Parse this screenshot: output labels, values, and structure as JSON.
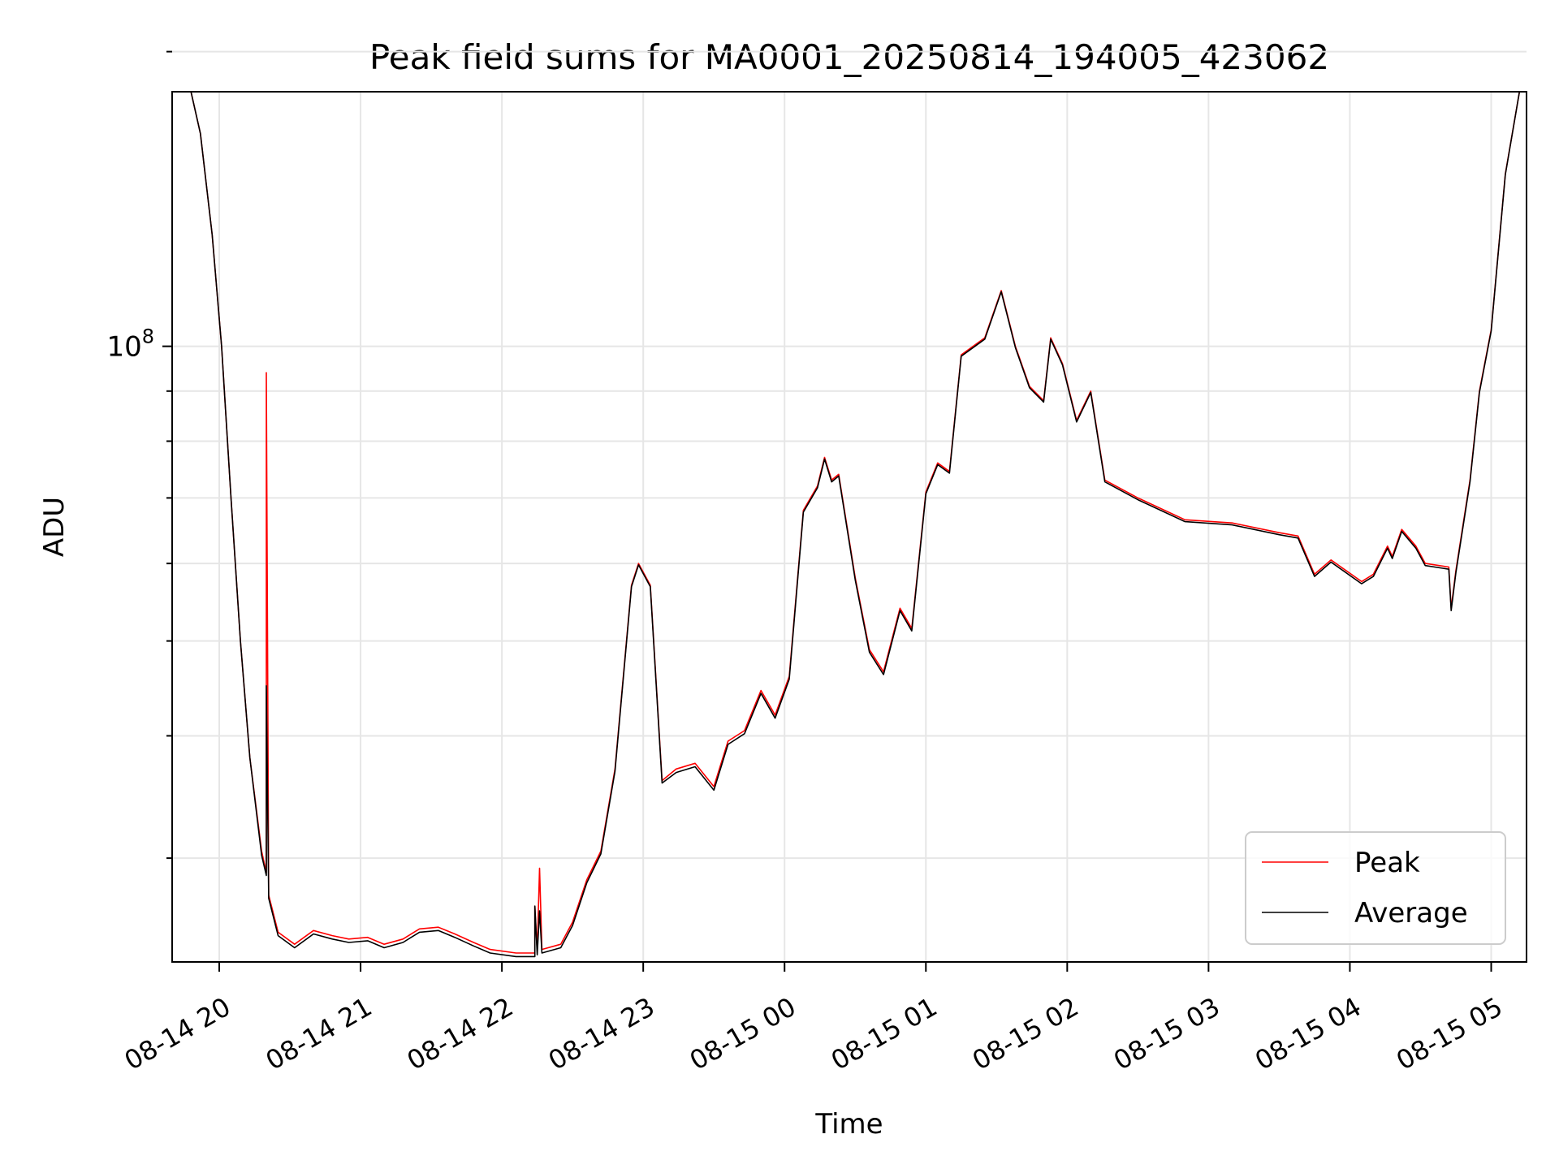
{
  "chart_data": {
    "type": "line",
    "title": "Peak field sums for MA0001_20250814_194005_423062",
    "xlabel": "Time",
    "ylabel": "ADU",
    "yscale": "log",
    "ylim": [
      23500000,
      182000000
    ],
    "xlim": [
      "2025-08-14 19:40",
      "2025-08-15 05:15"
    ],
    "y_major_tick_labels": [
      {
        "value": 100000000,
        "base": "10",
        "exp": "8"
      }
    ],
    "y_minor_ticks": [
      30000000,
      40000000,
      50000000,
      60000000,
      70000000,
      80000000,
      90000000,
      200000000
    ],
    "x_tick_labels": [
      "08-14 20",
      "08-14 21",
      "08-14 22",
      "08-14 23",
      "08-15 00",
      "08-15 01",
      "08-15 02",
      "08-15 03",
      "08-15 04",
      "08-15 05"
    ],
    "x_tick_times": [
      "2025-08-14 20:00",
      "2025-08-14 21:00",
      "2025-08-14 22:00",
      "2025-08-14 23:00",
      "2025-08-15 00:00",
      "2025-08-15 01:00",
      "2025-08-15 02:00",
      "2025-08-15 03:00",
      "2025-08-15 04:00",
      "2025-08-15 05:00"
    ],
    "grid": true,
    "legend_position": "lower-right",
    "series": [
      {
        "name": "Peak",
        "color": "#ff0000",
        "points": [
          [
            "2025-08-14 19:40",
            182000000
          ],
          [
            "2025-08-14 19:48",
            182000000
          ],
          [
            "2025-08-14 19:52",
            165000000
          ],
          [
            "2025-08-14 19:57",
            130000000
          ],
          [
            "2025-08-14 20:01",
            100000000
          ],
          [
            "2025-08-14 20:05",
            70000000
          ],
          [
            "2025-08-14 20:09",
            50000000
          ],
          [
            "2025-08-14 20:13",
            38000000
          ],
          [
            "2025-08-14 20:18",
            30500000
          ],
          [
            "2025-08-14 20:20",
            29000000
          ],
          [
            "2025-08-14 20:20",
            94000000
          ],
          [
            "2025-08-14 20:21",
            27500000
          ],
          [
            "2025-08-14 20:25",
            25200000
          ],
          [
            "2025-08-14 20:32",
            24500000
          ],
          [
            "2025-08-14 20:40",
            25300000
          ],
          [
            "2025-08-14 20:48",
            25000000
          ],
          [
            "2025-08-14 20:55",
            24800000
          ],
          [
            "2025-08-14 21:03",
            24900000
          ],
          [
            "2025-08-14 21:10",
            24500000
          ],
          [
            "2025-08-14 21:18",
            24800000
          ],
          [
            "2025-08-14 21:25",
            25400000
          ],
          [
            "2025-08-14 21:33",
            25500000
          ],
          [
            "2025-08-14 21:40",
            25100000
          ],
          [
            "2025-08-14 21:48",
            24600000
          ],
          [
            "2025-08-14 21:55",
            24200000
          ],
          [
            "2025-08-14 22:06",
            24000000
          ],
          [
            "2025-08-14 22:14",
            24000000
          ],
          [
            "2025-08-14 22:14",
            26800000
          ],
          [
            "2025-08-14 22:15",
            24100000
          ],
          [
            "2025-08-14 22:16",
            29300000
          ],
          [
            "2025-08-14 22:17",
            24200000
          ],
          [
            "2025-08-14 22:25",
            24500000
          ],
          [
            "2025-08-14 22:30",
            25800000
          ],
          [
            "2025-08-14 22:36",
            28500000
          ],
          [
            "2025-08-14 22:42",
            30500000
          ],
          [
            "2025-08-14 22:48",
            37000000
          ],
          [
            "2025-08-14 22:55",
            57000000
          ],
          [
            "2025-08-14 22:58",
            60000000
          ],
          [
            "2025-08-14 23:03",
            57000000
          ],
          [
            "2025-08-14 23:08",
            36000000
          ],
          [
            "2025-08-14 23:14",
            37000000
          ],
          [
            "2025-08-14 23:22",
            37500000
          ],
          [
            "2025-08-14 23:30",
            35500000
          ],
          [
            "2025-08-14 23:36",
            39500000
          ],
          [
            "2025-08-14 23:43",
            40500000
          ],
          [
            "2025-08-14 23:50",
            44500000
          ],
          [
            "2025-08-14 23:56",
            42000000
          ],
          [
            "2025-08-15 00:02",
            46000000
          ],
          [
            "2025-08-15 00:08",
            68000000
          ],
          [
            "2025-08-15 00:14",
            72000000
          ],
          [
            "2025-08-15 00:17",
            77000000
          ],
          [
            "2025-08-15 00:20",
            73000000
          ],
          [
            "2025-08-15 00:23",
            74000000
          ],
          [
            "2025-08-15 00:30",
            58000000
          ],
          [
            "2025-08-15 00:36",
            49000000
          ],
          [
            "2025-08-15 00:42",
            46500000
          ],
          [
            "2025-08-15 00:49",
            54000000
          ],
          [
            "2025-08-15 00:54",
            51500000
          ],
          [
            "2025-08-15 01:00",
            71000000
          ],
          [
            "2025-08-15 01:05",
            76000000
          ],
          [
            "2025-08-15 01:10",
            74500000
          ],
          [
            "2025-08-15 01:15",
            98000000
          ],
          [
            "2025-08-15 01:25",
            102000000
          ],
          [
            "2025-08-15 01:32",
            114000000
          ],
          [
            "2025-08-15 01:38",
            100000000
          ],
          [
            "2025-08-15 01:44",
            91000000
          ],
          [
            "2025-08-15 01:50",
            88000000
          ],
          [
            "2025-08-15 01:53",
            102000000
          ],
          [
            "2025-08-15 01:58",
            96000000
          ],
          [
            "2025-08-15 02:04",
            84000000
          ],
          [
            "2025-08-15 02:10",
            90000000
          ],
          [
            "2025-08-15 02:16",
            73000000
          ],
          [
            "2025-08-15 02:30",
            70000000
          ],
          [
            "2025-08-15 02:50",
            66500000
          ],
          [
            "2025-08-15 03:10",
            66000000
          ],
          [
            "2025-08-15 03:30",
            64500000
          ],
          [
            "2025-08-15 03:38",
            64000000
          ],
          [
            "2025-08-15 03:45",
            58500000
          ],
          [
            "2025-08-15 03:52",
            60500000
          ],
          [
            "2025-08-15 04:05",
            57500000
          ],
          [
            "2025-08-15 04:10",
            58500000
          ],
          [
            "2025-08-15 04:16",
            62500000
          ],
          [
            "2025-08-15 04:18",
            61000000
          ],
          [
            "2025-08-15 04:22",
            65000000
          ],
          [
            "2025-08-15 04:28",
            62500000
          ],
          [
            "2025-08-15 04:32",
            60000000
          ],
          [
            "2025-08-15 04:42",
            59500000
          ],
          [
            "2025-08-15 04:43",
            54000000
          ],
          [
            "2025-08-15 04:45",
            59000000
          ],
          [
            "2025-08-15 04:51",
            73000000
          ],
          [
            "2025-08-15 04:55",
            90000000
          ],
          [
            "2025-08-15 05:00",
            104000000
          ],
          [
            "2025-08-15 05:06",
            150000000
          ],
          [
            "2025-08-15 05:12",
            182000000
          ],
          [
            "2025-08-15 05:15",
            182000000
          ]
        ]
      },
      {
        "name": "Average",
        "color": "#000000",
        "points": [
          [
            "2025-08-14 19:40",
            182000000
          ],
          [
            "2025-08-14 19:48",
            182000000
          ],
          [
            "2025-08-14 19:52",
            165000000
          ],
          [
            "2025-08-14 19:57",
            130000000
          ],
          [
            "2025-08-14 20:01",
            100000000
          ],
          [
            "2025-08-14 20:05",
            70000000
          ],
          [
            "2025-08-14 20:09",
            50000000
          ],
          [
            "2025-08-14 20:13",
            38000000
          ],
          [
            "2025-08-14 20:18",
            30200000
          ],
          [
            "2025-08-14 20:20",
            28800000
          ],
          [
            "2025-08-14 20:20",
            45000000
          ],
          [
            "2025-08-14 20:21",
            27300000
          ],
          [
            "2025-08-14 20:25",
            25000000
          ],
          [
            "2025-08-14 20:32",
            24300000
          ],
          [
            "2025-08-14 20:40",
            25100000
          ],
          [
            "2025-08-14 20:48",
            24800000
          ],
          [
            "2025-08-14 20:55",
            24600000
          ],
          [
            "2025-08-14 21:03",
            24700000
          ],
          [
            "2025-08-14 21:10",
            24300000
          ],
          [
            "2025-08-14 21:18",
            24600000
          ],
          [
            "2025-08-14 21:25",
            25200000
          ],
          [
            "2025-08-14 21:33",
            25300000
          ],
          [
            "2025-08-14 21:40",
            24900000
          ],
          [
            "2025-08-14 21:48",
            24400000
          ],
          [
            "2025-08-14 21:55",
            24000000
          ],
          [
            "2025-08-14 22:06",
            23800000
          ],
          [
            "2025-08-14 22:14",
            23800000
          ],
          [
            "2025-08-14 22:14",
            26800000
          ],
          [
            "2025-08-14 22:15",
            23900000
          ],
          [
            "2025-08-14 22:16",
            26500000
          ],
          [
            "2025-08-14 22:17",
            24000000
          ],
          [
            "2025-08-14 22:25",
            24300000
          ],
          [
            "2025-08-14 22:30",
            25600000
          ],
          [
            "2025-08-14 22:36",
            28300000
          ],
          [
            "2025-08-14 22:42",
            30300000
          ],
          [
            "2025-08-14 22:48",
            36800000
          ],
          [
            "2025-08-14 22:55",
            56800000
          ],
          [
            "2025-08-14 22:58",
            59800000
          ],
          [
            "2025-08-14 23:03",
            56800000
          ],
          [
            "2025-08-14 23:08",
            35800000
          ],
          [
            "2025-08-14 23:14",
            36700000
          ],
          [
            "2025-08-14 23:22",
            37200000
          ],
          [
            "2025-08-14 23:30",
            35200000
          ],
          [
            "2025-08-14 23:36",
            39200000
          ],
          [
            "2025-08-14 23:43",
            40200000
          ],
          [
            "2025-08-14 23:50",
            44200000
          ],
          [
            "2025-08-14 23:56",
            41700000
          ],
          [
            "2025-08-15 00:02",
            45700000
          ],
          [
            "2025-08-15 00:08",
            67700000
          ],
          [
            "2025-08-15 00:14",
            71700000
          ],
          [
            "2025-08-15 00:17",
            76700000
          ],
          [
            "2025-08-15 00:20",
            72700000
          ],
          [
            "2025-08-15 00:23",
            73700000
          ],
          [
            "2025-08-15 00:30",
            57700000
          ],
          [
            "2025-08-15 00:36",
            48700000
          ],
          [
            "2025-08-15 00:42",
            46200000
          ],
          [
            "2025-08-15 00:49",
            53700000
          ],
          [
            "2025-08-15 00:54",
            51200000
          ],
          [
            "2025-08-15 01:00",
            70700000
          ],
          [
            "2025-08-15 01:05",
            75700000
          ],
          [
            "2025-08-15 01:10",
            74200000
          ],
          [
            "2025-08-15 01:15",
            97700000
          ],
          [
            "2025-08-15 01:25",
            101700000
          ],
          [
            "2025-08-15 01:32",
            113700000
          ],
          [
            "2025-08-15 01:38",
            99700000
          ],
          [
            "2025-08-15 01:44",
            90700000
          ],
          [
            "2025-08-15 01:50",
            87700000
          ],
          [
            "2025-08-15 01:53",
            101700000
          ],
          [
            "2025-08-15 01:58",
            95700000
          ],
          [
            "2025-08-15 02:04",
            83700000
          ],
          [
            "2025-08-15 02:10",
            89700000
          ],
          [
            "2025-08-15 02:16",
            72700000
          ],
          [
            "2025-08-15 02:30",
            69700000
          ],
          [
            "2025-08-15 02:50",
            66200000
          ],
          [
            "2025-08-15 03:10",
            65700000
          ],
          [
            "2025-08-15 03:30",
            64200000
          ],
          [
            "2025-08-15 03:38",
            63700000
          ],
          [
            "2025-08-15 03:45",
            58200000
          ],
          [
            "2025-08-15 03:52",
            60200000
          ],
          [
            "2025-08-15 04:05",
            57200000
          ],
          [
            "2025-08-15 04:10",
            58200000
          ],
          [
            "2025-08-15 04:16",
            62200000
          ],
          [
            "2025-08-15 04:18",
            60700000
          ],
          [
            "2025-08-15 04:22",
            64700000
          ],
          [
            "2025-08-15 04:28",
            62200000
          ],
          [
            "2025-08-15 04:32",
            59700000
          ],
          [
            "2025-08-15 04:42",
            59200000
          ],
          [
            "2025-08-15 04:43",
            53700000
          ],
          [
            "2025-08-15 04:45",
            58700000
          ],
          [
            "2025-08-15 04:51",
            72700000
          ],
          [
            "2025-08-15 04:55",
            89700000
          ],
          [
            "2025-08-15 05:00",
            103700000
          ],
          [
            "2025-08-15 05:06",
            149700000
          ],
          [
            "2025-08-15 05:12",
            182000000
          ],
          [
            "2025-08-15 05:15",
            182000000
          ]
        ]
      }
    ]
  }
}
